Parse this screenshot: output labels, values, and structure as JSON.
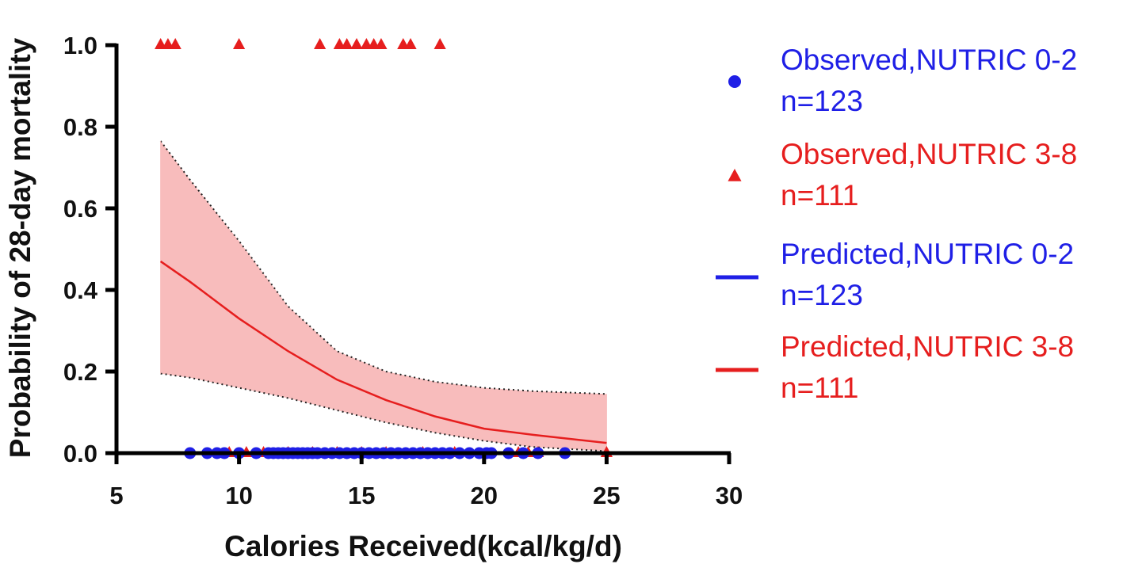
{
  "chart_data": {
    "type": "scatter",
    "xlabel": "Calories Received(kcal/kg/d)",
    "ylabel": "Probability of 28-day mortality",
    "xlim": [
      5,
      30
    ],
    "ylim": [
      0,
      1.0
    ],
    "xticks": [
      "5",
      "10",
      "15",
      "20",
      "25",
      "30"
    ],
    "yticks": [
      "0.0",
      "0.2",
      "0.4",
      "0.6",
      "0.8",
      "1.0"
    ],
    "colors": {
      "blue": "#1f1fe6",
      "red": "#e61e1e",
      "band_fill": "#f8bcbc",
      "axis": "#000000"
    },
    "series": [
      {
        "name": "Observed,NUTRIC 0-2",
        "n_label": "n=123",
        "kind": "points",
        "marker": "circle",
        "color": "#1f1fe6",
        "x": [
          8.0,
          8.7,
          9.1,
          9.4,
          10.0,
          10.7,
          11.2,
          11.4,
          11.6,
          11.8,
          12.0,
          12.2,
          12.4,
          12.6,
          12.8,
          13.0,
          13.2,
          13.5,
          13.8,
          14.1,
          14.4,
          14.7,
          15.0,
          15.3,
          15.6,
          15.9,
          16.2,
          16.5,
          16.8,
          17.1,
          17.4,
          17.7,
          18.0,
          18.3,
          18.6,
          19.0,
          19.4,
          19.8,
          20.1,
          20.3,
          21.0,
          21.6,
          22.2,
          23.3
        ],
        "y": [
          0,
          0,
          0,
          0,
          0,
          0,
          0,
          0,
          0,
          0,
          0,
          0,
          0,
          0,
          0,
          0,
          0,
          0,
          0,
          0,
          0,
          0,
          0,
          0,
          0,
          0,
          0,
          0,
          0,
          0,
          0,
          0,
          0,
          0,
          0,
          0,
          0,
          0,
          0,
          0,
          0,
          0,
          0,
          0
        ]
      },
      {
        "name": "Observed,NUTRIC 3-8",
        "n_label": "n=111",
        "kind": "points",
        "marker": "triangle",
        "color": "#e61e1e",
        "x": [
          6.8,
          7.1,
          7.4,
          10.0,
          13.3,
          14.1,
          14.4,
          14.8,
          15.2,
          15.5,
          15.8,
          16.7,
          17.0,
          18.2,
          9.6,
          10.3,
          11.0,
          12.0,
          13.0,
          14.0,
          15.0,
          16.0,
          17.5,
          18.8,
          21.4,
          21.8,
          22.2,
          25.0
        ],
        "y": [
          1,
          1,
          1,
          1,
          1,
          1,
          1,
          1,
          1,
          1,
          1,
          1,
          1,
          1,
          0,
          0,
          0,
          0,
          0,
          0,
          0,
          0,
          0,
          0,
          0,
          0,
          0,
          0
        ]
      },
      {
        "name": "Predicted,NUTRIC 0-2",
        "n_label": "n=123",
        "kind": "line",
        "color": "#1f1fe6",
        "x": [
          5,
          25
        ],
        "y": [
          0,
          0
        ]
      },
      {
        "name": "Predicted,NUTRIC 3-8",
        "n_label": "n=111",
        "kind": "line",
        "color": "#e61e1e",
        "x": [
          6.8,
          8,
          10,
          12,
          14,
          16,
          18,
          20,
          22,
          25
        ],
        "y": [
          0.47,
          0.42,
          0.33,
          0.25,
          0.18,
          0.13,
          0.09,
          0.06,
          0.045,
          0.025
        ],
        "ci_upper": [
          0.765,
          0.67,
          0.52,
          0.36,
          0.25,
          0.2,
          0.175,
          0.16,
          0.152,
          0.145
        ],
        "ci_lower": [
          0.195,
          0.185,
          0.16,
          0.135,
          0.105,
          0.075,
          0.05,
          0.03,
          0.015,
          0.005
        ]
      }
    ]
  }
}
